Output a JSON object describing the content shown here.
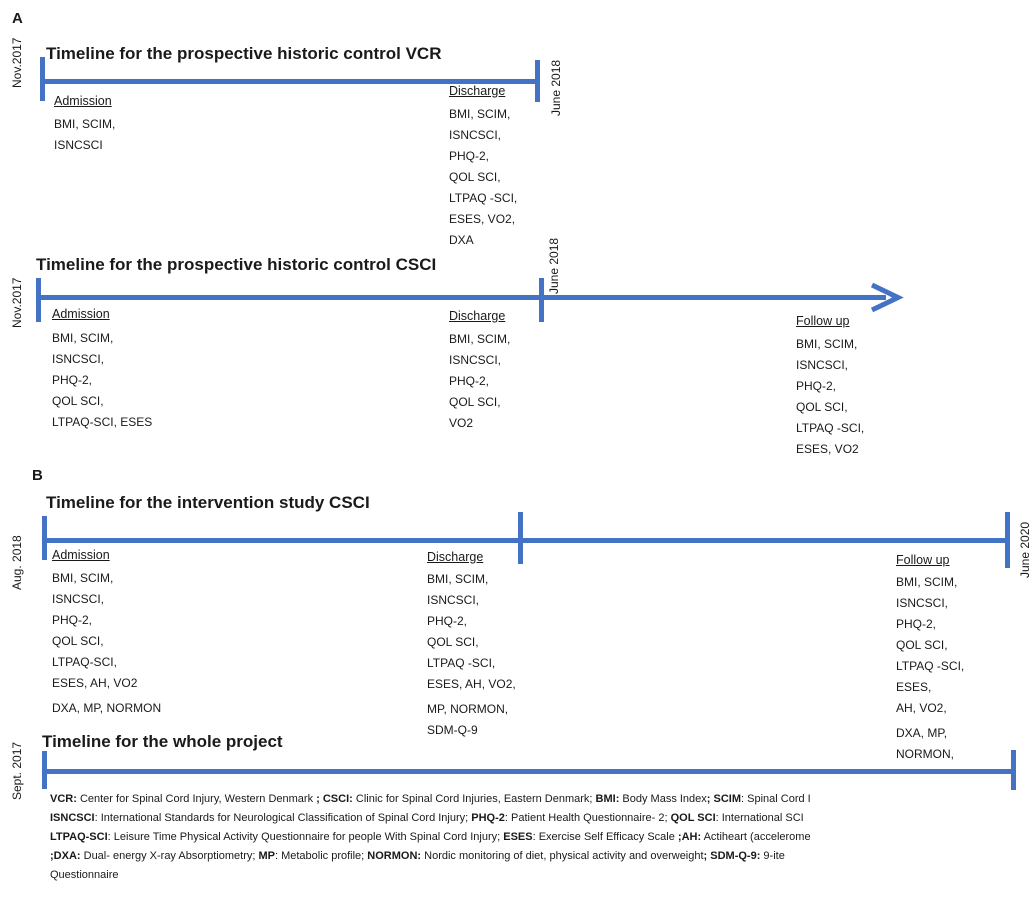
{
  "panel_a": "A",
  "panel_b": "B",
  "t1": {
    "title": "Timeline for the prospective historic control VCR",
    "start": "Nov.2017",
    "end": "June 2018",
    "admission": {
      "label": "Admission",
      "items": [
        "BMI, SCIM,",
        "ISNCSCI"
      ]
    },
    "discharge": {
      "label": "Discharge",
      "items": [
        "BMI, SCIM,",
        "ISNCSCI,",
        "PHQ-2,",
        "QOL SCI,",
        "LTPAQ -SCI,",
        "ESES, VO2,",
        "DXA"
      ]
    }
  },
  "t2": {
    "title": "Timeline for the prospective historic control CSCI",
    "start": "Nov.2017",
    "mid": "June 2018",
    "admission": {
      "label": "Admission",
      "items": [
        "BMI, SCIM,",
        "ISNCSCI,",
        "PHQ-2,",
        "QOL SCI,",
        "LTPAQ-SCI, ESES"
      ]
    },
    "discharge": {
      "label": "Discharge",
      "items": [
        "BMI, SCIM,",
        "ISNCSCI,",
        "PHQ-2,",
        "QOL SCI,",
        "VO2"
      ]
    },
    "followup": {
      "label": "Follow up",
      "items": [
        "BMI, SCIM,",
        "ISNCSCI,",
        "PHQ-2,",
        "QOL SCI,",
        "LTPAQ -SCI,",
        "ESES, VO2"
      ]
    }
  },
  "t3": {
    "title": "Timeline for the intervention study CSCI",
    "start": "Aug. 2018",
    "end": "June 2020",
    "admission": {
      "label": "Admission",
      "items": [
        "BMI, SCIM,",
        "ISNCSCI,",
        "PHQ-2,",
        "QOL SCI,",
        "LTPAQ-SCI,",
        "ESES, AH, VO2",
        "DXA, MP, NORMON"
      ]
    },
    "discharge": {
      "label": "Discharge",
      "items": [
        "BMI, SCIM,",
        "ISNCSCI,",
        "PHQ-2,",
        "QOL SCI,",
        "LTPAQ -SCI,",
        "ESES, AH, VO2,",
        "MP, NORMON,",
        "SDM-Q-9"
      ]
    },
    "followup": {
      "label": "Follow up",
      "items": [
        "BMI, SCIM,",
        "ISNCSCI,",
        "PHQ-2,",
        "QOL SCI,",
        "LTPAQ -SCI,",
        "ESES,",
        "AH, VO2,",
        "DXA, MP,",
        "NORMON,"
      ]
    }
  },
  "t4": {
    "title": "Timeline for the whole project",
    "start": "Sept. 2017"
  },
  "legend": [
    [
      {
        "b": "VCR:"
      },
      {
        "t": " Center for Spinal Cord Injury,  Western Denmark "
      },
      {
        "b": "; CSCI:"
      },
      {
        "t": " Clinic for Spinal Cord Injuries, Eastern Denmark; "
      },
      {
        "b": "BMI:"
      },
      {
        "t": " Body Mass Index"
      },
      {
        "b": "; SCIM"
      },
      {
        "t": ": Spinal Cord I"
      }
    ],
    [
      {
        "b": "ISNCSCI"
      },
      {
        "t": ": International Standards for Neurological Classification of Spinal Cord Injury; "
      },
      {
        "b": "PHQ-2"
      },
      {
        "t": ": Patient Health Questionnaire- 2; "
      },
      {
        "b": "QOL SCI"
      },
      {
        "t": ": International SCI"
      }
    ],
    [
      {
        "b": "LTPAQ-SCI"
      },
      {
        "t": ": Leisure Time Physical Activity Questionnaire for people With Spinal Cord Injury; "
      },
      {
        "b": "ESES"
      },
      {
        "t": ": Exercise Self Efficacy Scale "
      },
      {
        "b": ";AH:"
      },
      {
        "t": " Actiheart (accelerome"
      }
    ],
    [
      {
        "b": ";DXA:"
      },
      {
        "t": " Dual- energy X-ray Absorptiometry; "
      },
      {
        "b": "MP"
      },
      {
        "t": ": Metabolic profile; "
      },
      {
        "b": "NORMON:"
      },
      {
        "t": "  Nordic monitoring of diet, physical activity and overweight"
      },
      {
        "b": "; SDM-Q-9:"
      },
      {
        "t": " 9-ite"
      }
    ],
    [
      {
        "t": "Questionnaire"
      }
    ]
  ],
  "colors": {
    "timeline": "#4472c4",
    "text": "#1a1a1a"
  }
}
